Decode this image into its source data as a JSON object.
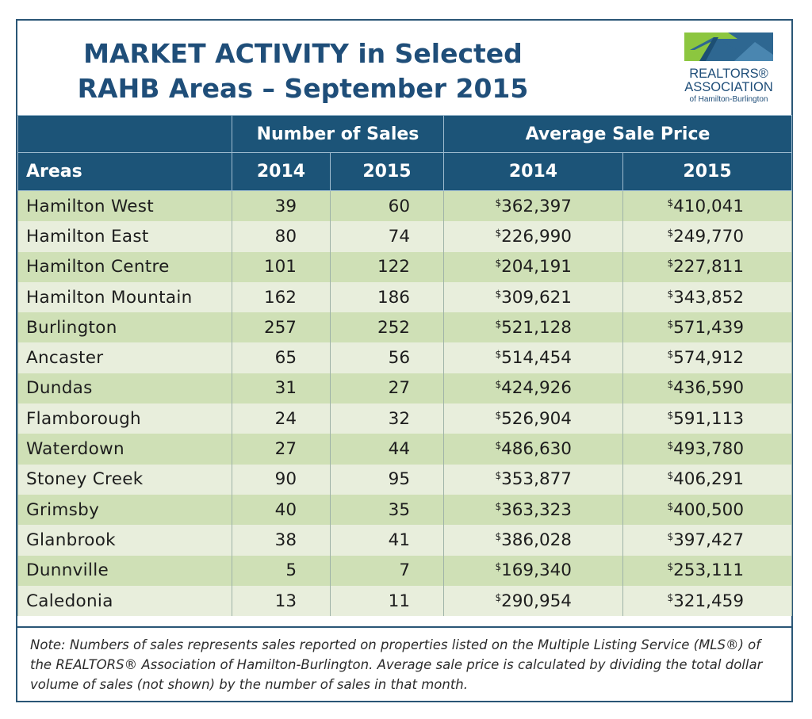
{
  "title": {
    "line1": "MARKET ACTIVITY in Selected",
    "line2": "RAHB Areas – September 2015"
  },
  "logo": {
    "line1": "REALTORS®",
    "line2": "ASSOCIATION",
    "line3": "of Hamilton-Burlington",
    "colors": {
      "green": "#8cc63f",
      "blue": "#2e6791"
    }
  },
  "colors": {
    "header": "#1c5478",
    "row_odd": "#cfe0b6",
    "row_even": "#e8eedc",
    "title": "#1f4e79"
  },
  "chart_data": {
    "type": "table",
    "group_headers": [
      "Number of Sales",
      "Average Sale Price"
    ],
    "columns": [
      "Areas",
      "2014",
      "2015",
      "2014",
      "2015"
    ],
    "currency_symbol": "$",
    "rows": [
      {
        "area": "Hamilton West",
        "sales_2014": "39",
        "sales_2015": "60",
        "price_2014": "362,397",
        "price_2015": "410,041"
      },
      {
        "area": "Hamilton East",
        "sales_2014": "80",
        "sales_2015": "74",
        "price_2014": "226,990",
        "price_2015": "249,770"
      },
      {
        "area": "Hamilton Centre",
        "sales_2014": "101",
        "sales_2015": "122",
        "price_2014": "204,191",
        "price_2015": "227,811"
      },
      {
        "area": "Hamilton Mountain",
        "sales_2014": "162",
        "sales_2015": "186",
        "price_2014": "309,621",
        "price_2015": "343,852"
      },
      {
        "area": "Burlington",
        "sales_2014": "257",
        "sales_2015": "252",
        "price_2014": "521,128",
        "price_2015": "571,439"
      },
      {
        "area": "Ancaster",
        "sales_2014": "65",
        "sales_2015": "56",
        "price_2014": "514,454",
        "price_2015": "574,912"
      },
      {
        "area": "Dundas",
        "sales_2014": "31",
        "sales_2015": "27",
        "price_2014": "424,926",
        "price_2015": "436,590"
      },
      {
        "area": "Flamborough",
        "sales_2014": "24",
        "sales_2015": "32",
        "price_2014": "526,904",
        "price_2015": "591,113"
      },
      {
        "area": "Waterdown",
        "sales_2014": "27",
        "sales_2015": "44",
        "price_2014": "486,630",
        "price_2015": "493,780"
      },
      {
        "area": "Stoney Creek",
        "sales_2014": "90",
        "sales_2015": "95",
        "price_2014": "353,877",
        "price_2015": "406,291"
      },
      {
        "area": "Grimsby",
        "sales_2014": "40",
        "sales_2015": "35",
        "price_2014": "363,323",
        "price_2015": "400,500"
      },
      {
        "area": "Glanbrook",
        "sales_2014": "38",
        "sales_2015": "41",
        "price_2014": "386,028",
        "price_2015": "397,427"
      },
      {
        "area": "Dunnville",
        "sales_2014": "5",
        "sales_2015": "7",
        "price_2014": "169,340",
        "price_2015": "253,111"
      },
      {
        "area": "Caledonia",
        "sales_2014": "13",
        "sales_2015": "11",
        "price_2014": "290,954",
        "price_2015": "321,459"
      }
    ]
  },
  "note": {
    "text": "Note:  Numbers of sales represents sales reported on properties listed on the Multiple Listing Service (MLS®) of the REALTORS® Association of Hamilton-Burlington.  Average sale price is calculated by dividing the total dollar volume of sales (not shown) by the number of sales in that month."
  }
}
